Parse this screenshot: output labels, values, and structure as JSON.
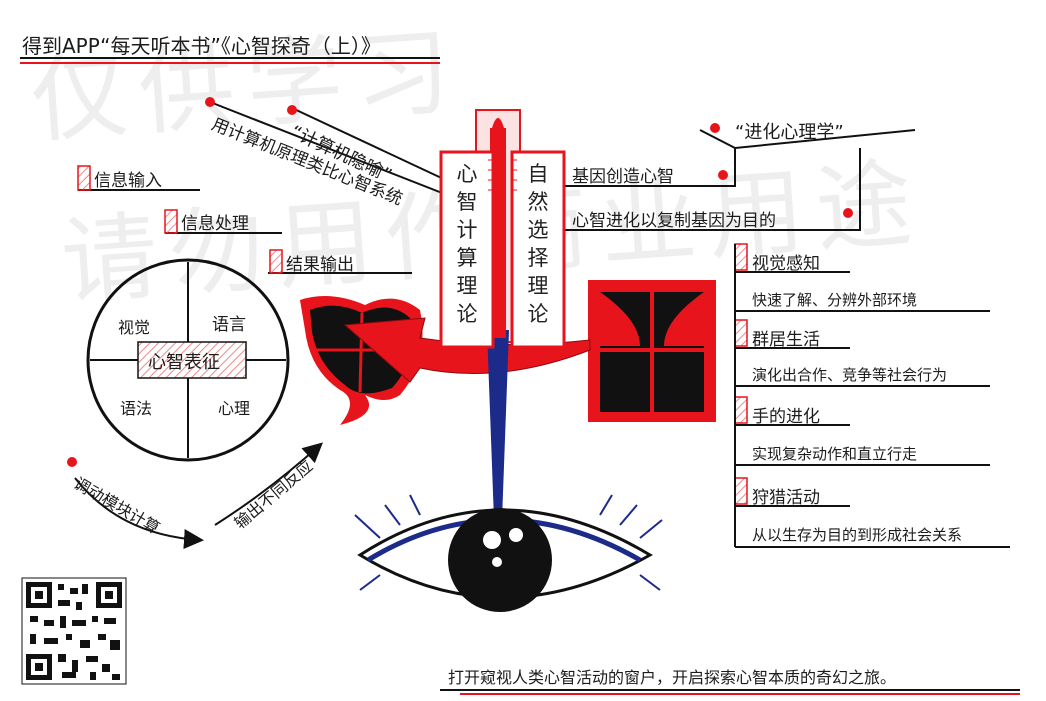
{
  "title": "得到APP“每天听本书”《心智探奇（上）》",
  "watermark": {
    "line1": "仅供学习",
    "line2": "请勿用作商业用途"
  },
  "colors": {
    "red": "#e8141b",
    "navy": "#1c2a8a",
    "black": "#111111",
    "pink_hatch": "#f08a8a"
  },
  "left_column": {
    "text": "心智计算理论",
    "chars": [
      "心",
      "智",
      "计",
      "算",
      "理",
      "论"
    ]
  },
  "right_column": {
    "text": "自然选择理论",
    "chars": [
      "自",
      "然",
      "选",
      "择",
      "理",
      "论"
    ]
  },
  "left_branches": {
    "metaphor": "“计算机隐喻”",
    "analogy": "用计算机原理类比心智系统",
    "info_input": "信息输入",
    "info_processing": "信息处理",
    "result_output": "结果输出"
  },
  "circle": {
    "center": "心智表征",
    "top_left": "视觉",
    "top_right": "语言",
    "bottom_left": "语法",
    "bottom_right": "心理"
  },
  "arrows": {
    "modules": "调动模块计算",
    "output": "输出不同反应"
  },
  "right_branches": {
    "evolution": "“进化心理学”",
    "gene": "基因创造心智",
    "purpose": "心智进化以复制基因为目的"
  },
  "right_list": [
    {
      "head": "视觉感知",
      "sub": "快速了解、分辨外部环境"
    },
    {
      "head": "群居生活",
      "sub": "演化出合作、竞争等社会行为"
    },
    {
      "head": "手的进化",
      "sub": "实现复杂动作和直立行走"
    },
    {
      "head": "狩猎活动",
      "sub": "从以生存为目的到形成社会关系"
    }
  ],
  "footer": "打开窥视人类心智活动的窗户，开启探索心智本质的奇幻之旅。",
  "icons": {
    "qr": "qr-code-icon",
    "heart": "heart-icon",
    "window": "window-icon",
    "eye": "eye-icon",
    "brush": "brush-icon"
  }
}
